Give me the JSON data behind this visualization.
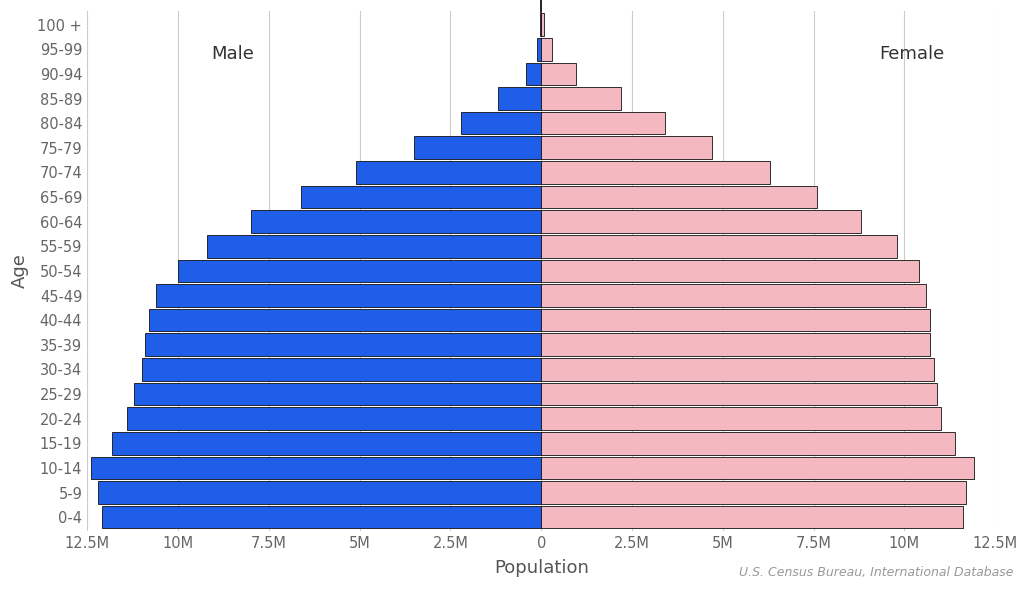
{
  "age_groups": [
    "0-4",
    "5-9",
    "10-14",
    "15-19",
    "20-24",
    "25-29",
    "30-34",
    "35-39",
    "40-44",
    "45-49",
    "50-54",
    "55-59",
    "60-64",
    "65-69",
    "70-74",
    "75-79",
    "80-84",
    "85-89",
    "90-94",
    "95-99",
    "100 +"
  ],
  "male": [
    12100000,
    12200000,
    12400000,
    11800000,
    11400000,
    11200000,
    11000000,
    10900000,
    10800000,
    10600000,
    10000000,
    9200000,
    8000000,
    6600000,
    5100000,
    3500000,
    2200000,
    1200000,
    430000,
    110000,
    22000
  ],
  "female": [
    11600000,
    11700000,
    11900000,
    11400000,
    11000000,
    10900000,
    10800000,
    10700000,
    10700000,
    10600000,
    10400000,
    9800000,
    8800000,
    7600000,
    6300000,
    4700000,
    3400000,
    2200000,
    950000,
    310000,
    75000
  ],
  "male_color": "#1f5ee8",
  "female_color": "#f4b8c1",
  "bar_edgecolor": "#111111",
  "male_label": "Male",
  "female_label": "Female",
  "xlabel": "Population",
  "ylabel": "Age",
  "xlim": 12500000,
  "source_text": "U.S. Census Bureau, International Database",
  "background_color": "#ffffff",
  "grid_color": "#cccccc",
  "label_fontsize": 13,
  "tick_fontsize": 10.5,
  "source_fontsize": 9,
  "annotation_fontsize": 13,
  "bar_height": 0.92
}
